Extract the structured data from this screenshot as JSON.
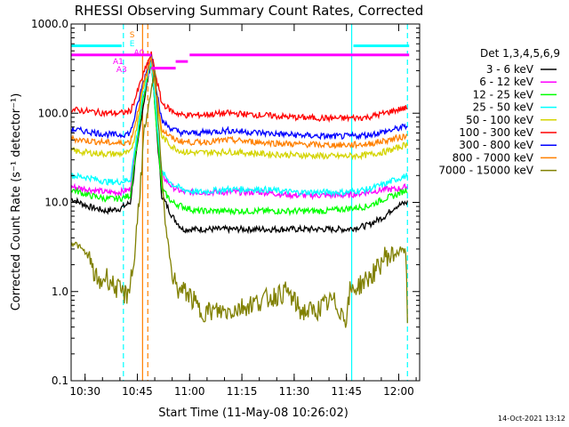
{
  "chart_data": {
    "type": "line",
    "title": "RHESSI Observing Summary Count Rates, Corrected",
    "xlabel": "Start Time (11-May-08 10:26:02)",
    "ylabel": "Corrected Count Rate (s⁻¹ detector⁻¹)",
    "y_scale": "log",
    "ylim": [
      0.1,
      1000
    ],
    "xlim_min": [
      0,
      100
    ],
    "y_ticks": [
      "1000.0",
      "100.0",
      "10.0",
      "1.0",
      "0.1"
    ],
    "y_tick_values": [
      1000,
      100,
      10,
      1,
      0.1
    ],
    "x_ticks": [
      "10:30",
      "10:45",
      "11:00",
      "11:15",
      "11:30",
      "11:45",
      "12:00"
    ],
    "x_tick_values": [
      4,
      19,
      34,
      49,
      64,
      79,
      94
    ],
    "timestamp": "14-Oct-2021 13:12",
    "legend_title": "Det 1,3,4,5,6,9",
    "legend_position": "right",
    "series": [
      {
        "name": "3 - 6 keV",
        "color": "#000000",
        "x": [
          0,
          5,
          10,
          14,
          17,
          18.5,
          20.5,
          23,
          26,
          29,
          32,
          36,
          45,
          55,
          64,
          73,
          79,
          85,
          90,
          93,
          96.5
        ],
        "y": [
          11,
          9,
          8,
          8.5,
          10,
          30,
          110,
          400,
          12,
          7,
          5,
          5,
          5,
          5,
          5,
          5,
          5,
          5.5,
          7,
          9,
          10
        ]
      },
      {
        "name": "6 - 12 keV",
        "color": "#ff00ff",
        "x": [
          0,
          5,
          10,
          14,
          17,
          18.5,
          20.5,
          23,
          26,
          29,
          32,
          36,
          45,
          55,
          64,
          73,
          79,
          85,
          90,
          93,
          96.5
        ],
        "y": [
          15,
          14,
          13,
          13,
          14,
          40,
          140,
          400,
          20,
          15,
          13,
          13,
          13,
          13,
          12,
          12,
          12,
          13,
          14,
          14,
          15
        ]
      },
      {
        "name": "12 - 25 keV",
        "color": "#00ff00",
        "x": [
          0,
          5,
          10,
          14,
          17,
          18.5,
          20.5,
          23,
          26,
          29,
          32,
          36,
          45,
          55,
          64,
          73,
          79,
          85,
          90,
          93,
          96.5
        ],
        "y": [
          14,
          12,
          11,
          11,
          12,
          35,
          130,
          400,
          14,
          10,
          9,
          8,
          8,
          8,
          8,
          8,
          8.5,
          9,
          11,
          12,
          14
        ]
      },
      {
        "name": "25 - 50 keV",
        "color": "#00ffff",
        "x": [
          0,
          5,
          10,
          14,
          17,
          18.5,
          20.5,
          23,
          26,
          29,
          32,
          36,
          45,
          55,
          64,
          73,
          79,
          85,
          90,
          93,
          96.5
        ],
        "y": [
          20,
          19,
          17,
          17,
          18,
          45,
          150,
          400,
          22,
          16,
          14,
          13,
          14,
          14,
          13,
          13,
          13,
          14,
          16,
          18,
          20
        ]
      },
      {
        "name": "50 - 100 keV",
        "color": "#d4d400",
        "x": [
          0,
          5,
          10,
          14,
          17,
          18.5,
          20.5,
          23,
          26,
          29,
          32,
          36,
          45,
          55,
          64,
          73,
          79,
          85,
          90,
          93,
          96.5
        ],
        "y": [
          38,
          36,
          35,
          35,
          36,
          60,
          180,
          420,
          55,
          42,
          37,
          36,
          37,
          35,
          34,
          33,
          33,
          34,
          37,
          40,
          45
        ]
      },
      {
        "name": "100 - 300 keV",
        "color": "#ff0000",
        "x": [
          0,
          5,
          10,
          14,
          17,
          18.5,
          20.5,
          23,
          26,
          29,
          32,
          36,
          45,
          55,
          64,
          73,
          79,
          85,
          90,
          93,
          96.5
        ],
        "y": [
          110,
          105,
          100,
          100,
          105,
          150,
          260,
          460,
          130,
          105,
          95,
          95,
          100,
          95,
          90,
          88,
          88,
          90,
          100,
          108,
          115
        ]
      },
      {
        "name": "300 - 800 keV",
        "color": "#0000ff",
        "x": [
          0,
          5,
          10,
          14,
          17,
          18.5,
          20.5,
          23,
          26,
          29,
          32,
          36,
          45,
          55,
          64,
          73,
          79,
          85,
          90,
          93,
          96.5
        ],
        "y": [
          66,
          62,
          58,
          57,
          60,
          100,
          210,
          440,
          82,
          66,
          60,
          60,
          64,
          60,
          57,
          55,
          55,
          57,
          62,
          66,
          72
        ]
      },
      {
        "name": "800 - 7000 keV",
        "color": "#ff8000",
        "x": [
          0,
          5,
          10,
          14,
          17,
          18.5,
          20.5,
          23,
          26,
          29,
          32,
          36,
          45,
          55,
          64,
          73,
          79,
          85,
          90,
          93,
          96.5
        ],
        "y": [
          52,
          49,
          47,
          46,
          48,
          80,
          190,
          430,
          66,
          52,
          48,
          47,
          50,
          47,
          45,
          44,
          44,
          45,
          49,
          52,
          56
        ]
      },
      {
        "name": "7000 - 15000 keV",
        "color": "#808000",
        "x": [
          0,
          1,
          3,
          5,
          6,
          8,
          10,
          12,
          14,
          16,
          18,
          21,
          24,
          27,
          29,
          31,
          33,
          35,
          37,
          45,
          55,
          62,
          66,
          70,
          75,
          79,
          80,
          83,
          86,
          88,
          90,
          92,
          94,
          96,
          96.5
        ],
        "y": [
          3.5,
          3.5,
          3,
          2.5,
          1.8,
          1.2,
          1.5,
          1.2,
          1.0,
          0.9,
          2,
          60,
          300,
          6,
          1.5,
          1.0,
          1.0,
          0.8,
          0.6,
          0.6,
          0.8,
          1.0,
          0.6,
          0.6,
          0.8,
          0.5,
          1.0,
          1.2,
          1.5,
          1.8,
          2.5,
          2.5,
          3,
          2.8,
          0.5
        ]
      }
    ],
    "state_bars": [
      {
        "color": "#ff00ff",
        "segments": [
          [
            0,
            23
          ],
          [
            34,
            97
          ]
        ],
        "value": 450
      },
      {
        "color": "#00ffff",
        "segments": [
          [
            0,
            14.5
          ],
          [
            81,
            97
          ]
        ],
        "value": 570
      },
      {
        "color": "#ff00ff",
        "segments": [
          [
            30,
            33.5
          ]
        ],
        "value": 380
      },
      {
        "color": "#ff00ff",
        "segments": [
          [
            23,
            30
          ]
        ],
        "value": 320
      }
    ],
    "vlines": [
      {
        "x": 15,
        "color": "#00ffff",
        "style": "dashed"
      },
      {
        "x": 80.5,
        "color": "#00ffff",
        "style": "solid"
      },
      {
        "x": 96.5,
        "color": "#00ffff",
        "style": "dashed"
      },
      {
        "x": 20.5,
        "color": "#ff8000",
        "style": "solid"
      },
      {
        "x": 22,
        "color": "#ff8000",
        "style": "dashed"
      }
    ],
    "markers": [
      {
        "label": "S",
        "x": 17.5,
        "y": 760,
        "color": "#ff8000"
      },
      {
        "label": "E",
        "x": 17.5,
        "y": 600,
        "color": "#00ffff"
      },
      {
        "label": "A0",
        "x": 19.5,
        "y": 480,
        "color": "#ff00ff"
      },
      {
        "label": "A1",
        "x": 13.5,
        "y": 380,
        "color": "#ff00ff"
      },
      {
        "label": "A3",
        "x": 14.5,
        "y": 310,
        "color": "#ff00ff"
      }
    ]
  }
}
